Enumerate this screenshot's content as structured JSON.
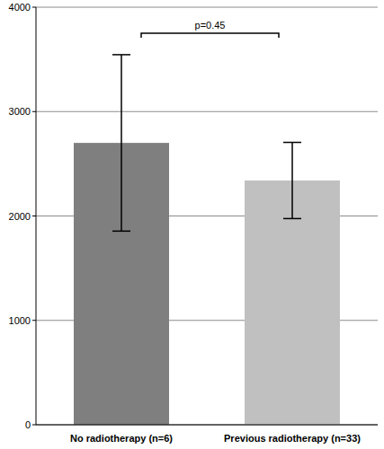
{
  "chart_data": {
    "type": "bar",
    "categories": [
      "No radiotherapy (n=6)",
      "Previous radiotherapy (n=33)"
    ],
    "values": [
      2700,
      2340
    ],
    "errors": [
      845,
      365
    ],
    "colors": [
      "#7f7f7f",
      "#c0c0c0"
    ],
    "ylim": [
      0,
      4000
    ],
    "yticks": [
      0,
      1000,
      2000,
      3000,
      4000
    ],
    "grid": true,
    "annotation": "p=0.45"
  }
}
